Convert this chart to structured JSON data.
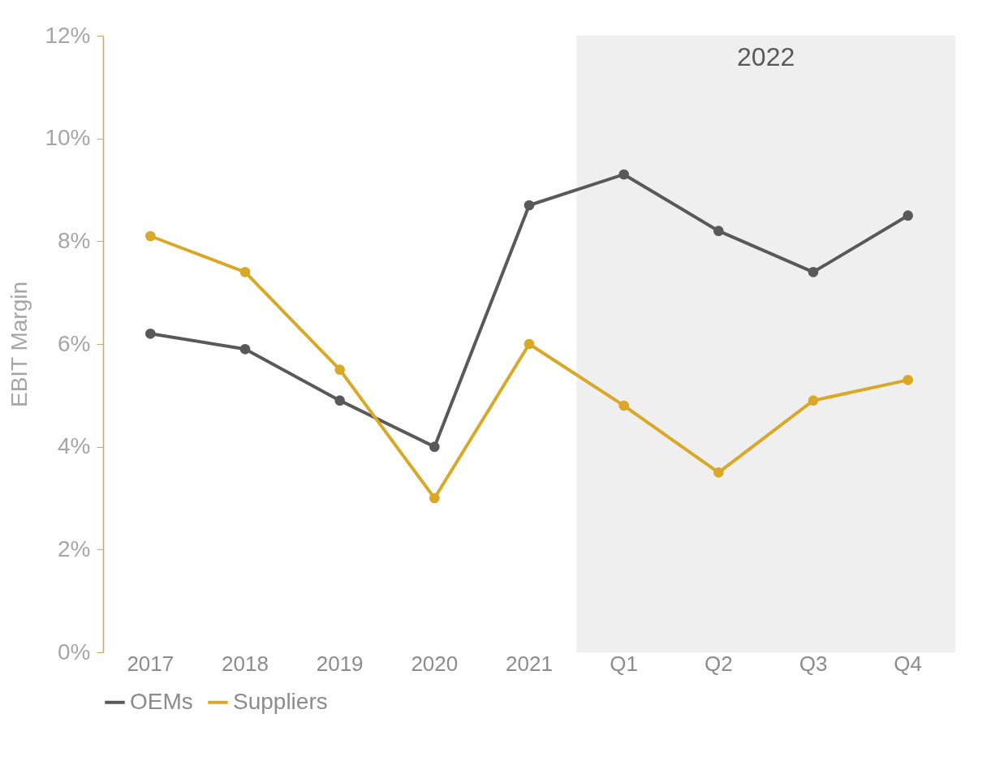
{
  "chart_data": {
    "type": "line",
    "ylabel": "EBIT Margin",
    "categories": [
      "2017",
      "2018",
      "2019",
      "2020",
      "2021",
      "Q1",
      "Q2",
      "Q3",
      "Q4"
    ],
    "series": [
      {
        "name": "OEMs",
        "color": "#595959",
        "values": [
          6.2,
          5.9,
          4.9,
          4.0,
          8.7,
          9.3,
          8.2,
          7.4,
          8.5
        ]
      },
      {
        "name": "Suppliers",
        "color": "#d9a826",
        "values": [
          8.1,
          7.4,
          5.5,
          3.0,
          6.0,
          4.8,
          3.5,
          4.9,
          5.3
        ]
      }
    ],
    "ylim": [
      0,
      12
    ],
    "yticks": [
      {
        "value": 0,
        "label": "0%"
      },
      {
        "value": 2,
        "label": "2%"
      },
      {
        "value": 4,
        "label": "4%"
      },
      {
        "value": 6,
        "label": "6%"
      },
      {
        "value": 8,
        "label": "8%"
      },
      {
        "value": 10,
        "label": "10%"
      },
      {
        "value": 12,
        "label": "12%"
      }
    ],
    "bands": [
      {
        "axis": "x",
        "from": "Q1",
        "to": "Q4",
        "label": "2022",
        "color": "#efefef"
      }
    ],
    "grid": false,
    "legend": "bottom",
    "marker": "circle",
    "line_style": "solid"
  }
}
